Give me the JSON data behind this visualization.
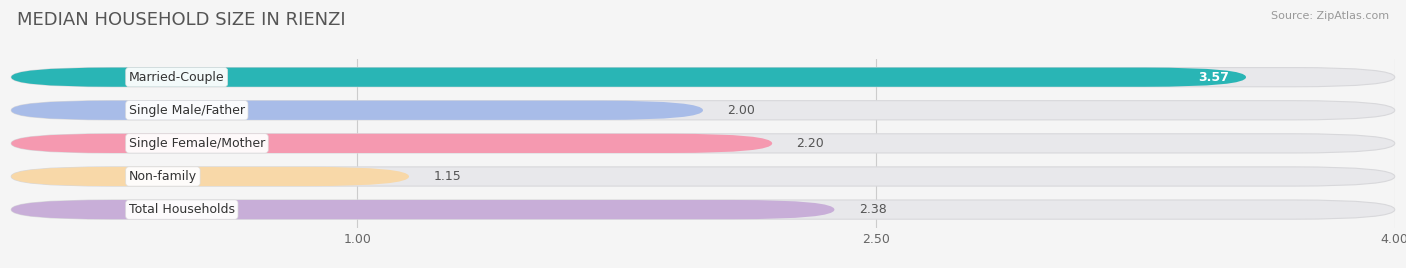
{
  "title": "MEDIAN HOUSEHOLD SIZE IN RIENZI",
  "source": "Source: ZipAtlas.com",
  "categories": [
    "Married-Couple",
    "Single Male/Father",
    "Single Female/Mother",
    "Non-family",
    "Total Households"
  ],
  "values": [
    3.57,
    2.0,
    2.2,
    1.15,
    2.38
  ],
  "bar_colors": [
    "#29b5b5",
    "#a8bce8",
    "#f599b0",
    "#f8d8a8",
    "#c8aed8"
  ],
  "bar_bg_color": "#e8e8eb",
  "bar_bg_edge_color": "#d8d8db",
  "xlim_max": 4.0,
  "xticks": [
    1.0,
    2.5,
    4.0
  ],
  "background_color": "#f5f5f5",
  "title_fontsize": 13,
  "label_fontsize": 9,
  "value_fontsize": 9,
  "value_inside_color": "#ffffff",
  "value_outside_color": "#555555",
  "inside_threshold": 3.0
}
